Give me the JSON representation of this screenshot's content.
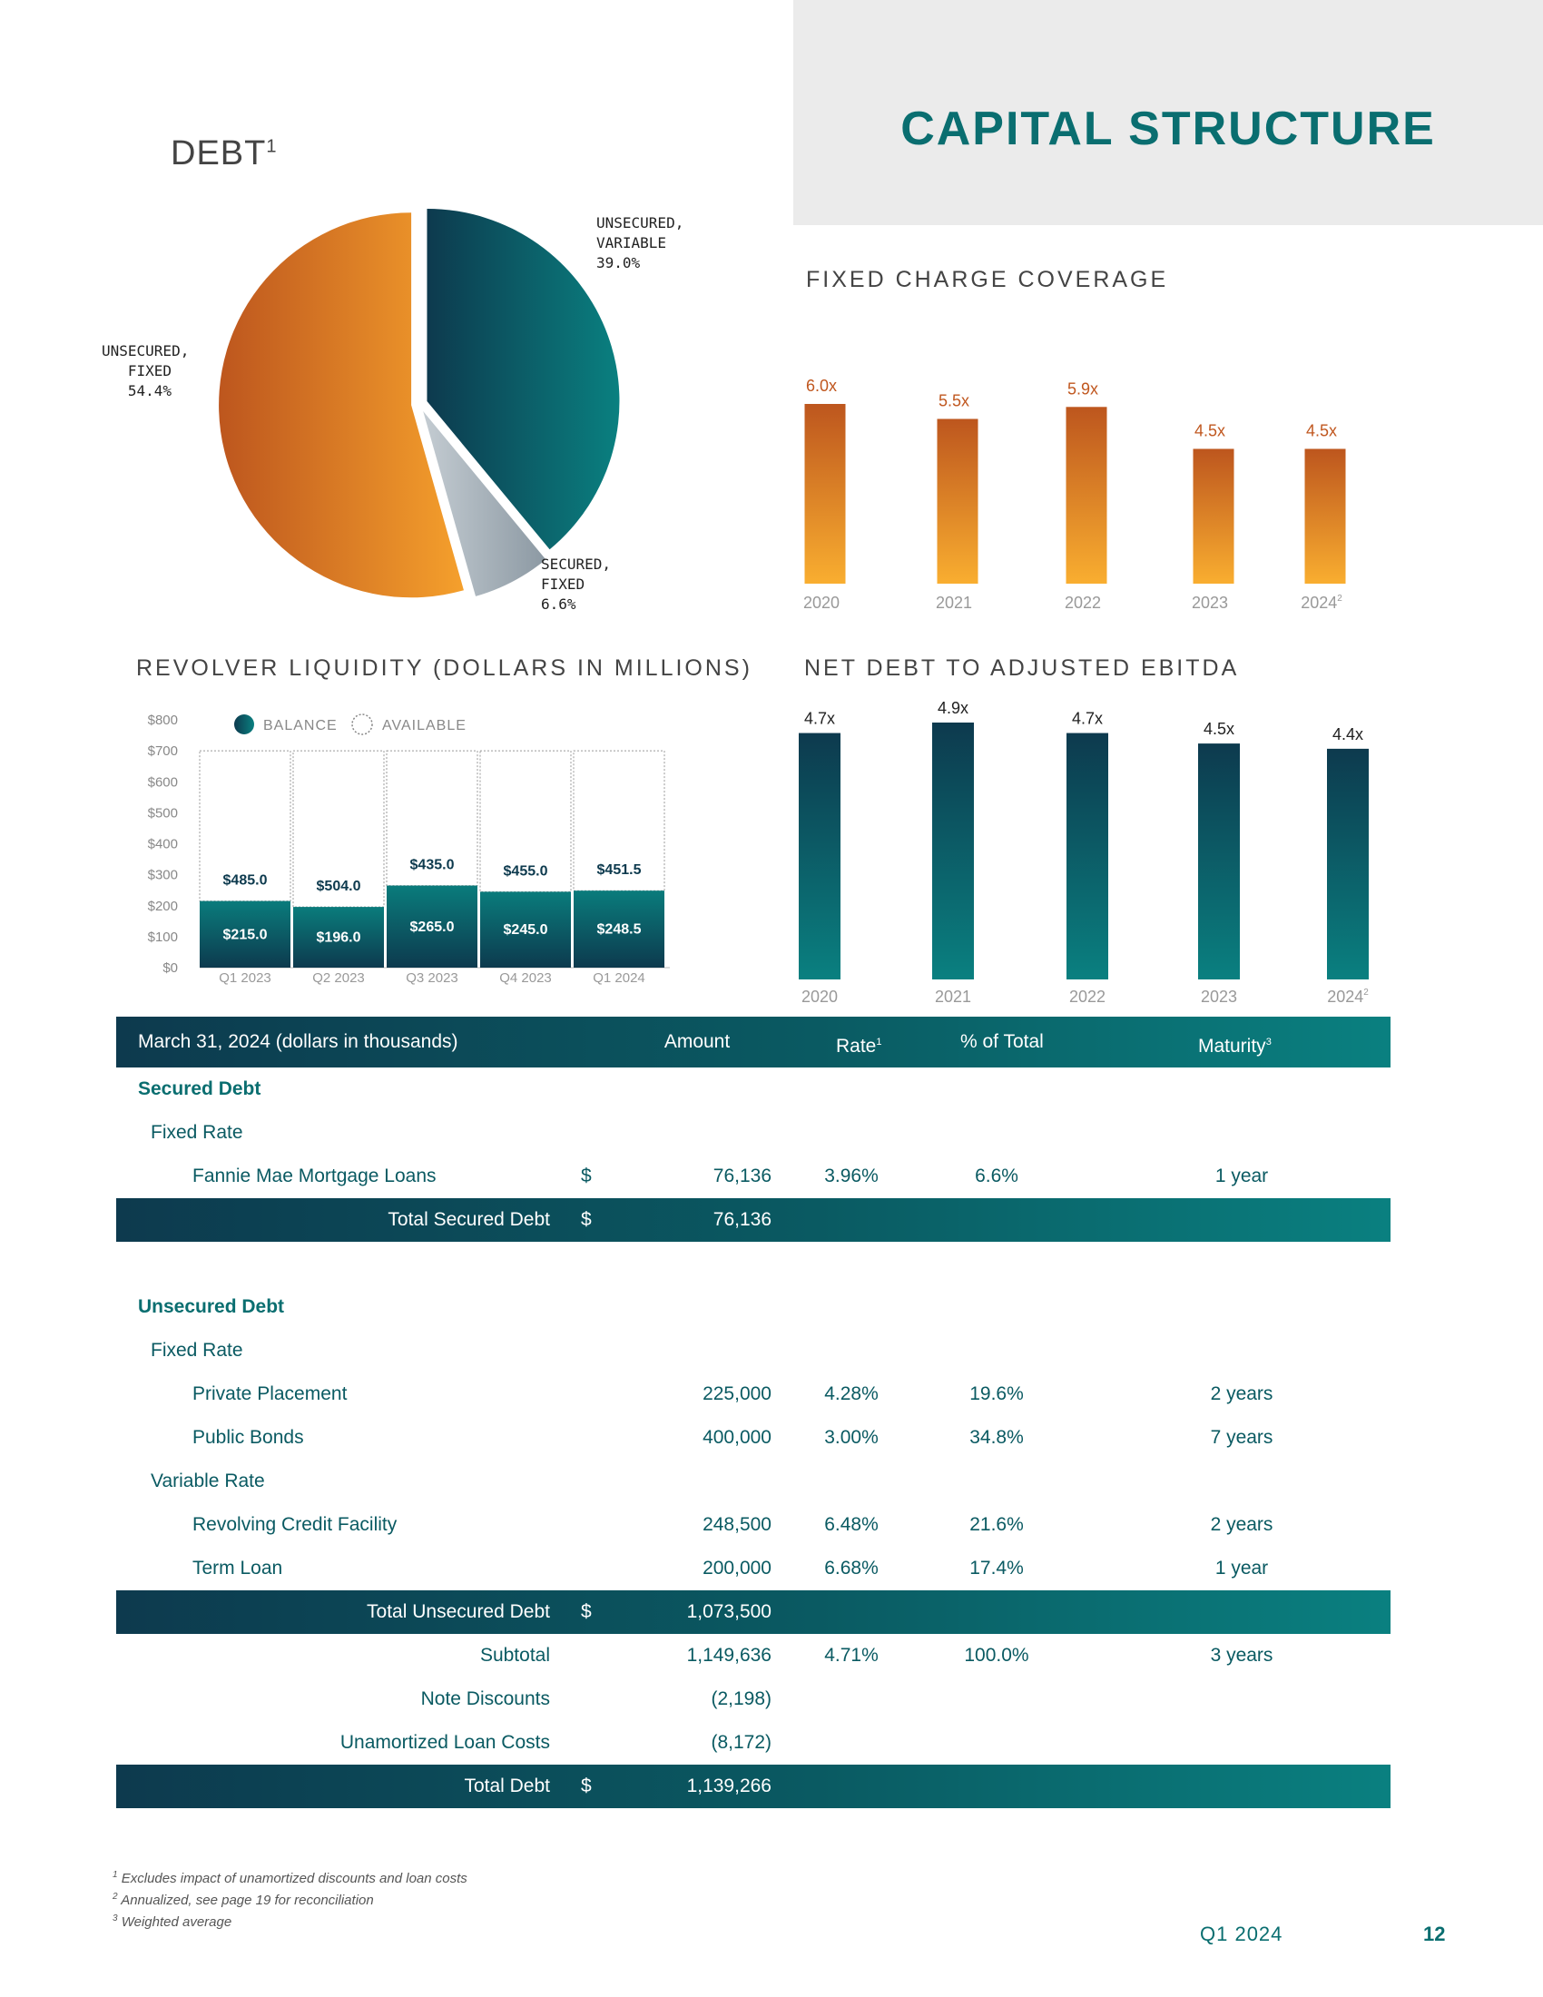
{
  "header": {
    "title": "CAPITAL STRUCTURE"
  },
  "debt_pie": {
    "title": "DEBT",
    "title_sup": "1",
    "labels": {
      "unsecured_variable": "UNSECURED,\nVARIABLE\n39.0%",
      "unsecured_fixed": "UNSECURED,\n   FIXED\n   54.4%",
      "secured_fixed": "SECURED,\nFIXED\n6.6%"
    }
  },
  "fixed_charge": {
    "title": "FIXED CHARGE COVERAGE"
  },
  "revolver": {
    "title": "REVOLVER LIQUIDITY (DOLLARS IN MILLIONS)",
    "legend_balance": "BALANCE",
    "legend_available": "AVAILABLE"
  },
  "net_debt": {
    "title": "NET DEBT TO ADJUSTED EBITDA"
  },
  "chart_data": [
    {
      "type": "pie",
      "title": "DEBT1",
      "categories": [
        "Unsecured, Variable",
        "Secured, Fixed",
        "Unsecured, Fixed"
      ],
      "values": [
        39.0,
        6.6,
        54.4
      ],
      "colors": [
        "#0a6e70",
        "#9aa7b0",
        "#e08a2a"
      ]
    },
    {
      "type": "bar",
      "title": "FIXED CHARGE COVERAGE",
      "categories": [
        "2020",
        "2021",
        "2022",
        "2023",
        "2024"
      ],
      "category_sup": [
        "",
        "",
        "",
        "",
        "2"
      ],
      "values": [
        6.0,
        5.5,
        5.9,
        4.5,
        4.5
      ],
      "value_labels": [
        "6.0x",
        "5.5x",
        "5.9x",
        "4.5x",
        "4.5x"
      ],
      "ylim": [
        0,
        6.0
      ]
    },
    {
      "type": "bar",
      "title": "REVOLVER LIQUIDITY (DOLLARS IN MILLIONS)",
      "stacked": true,
      "categories": [
        "Q1 2023",
        "Q2 2023",
        "Q3 2023",
        "Q4 2023",
        "Q1 2024"
      ],
      "yticks": [
        "$800",
        "$700",
        "$600",
        "$500",
        "$400",
        "$300",
        "$200",
        "$100",
        "$0"
      ],
      "ylim": [
        0,
        800
      ],
      "series": [
        {
          "name": "BALANCE",
          "values": [
            215.0,
            196.0,
            265.0,
            245.0,
            248.5
          ],
          "labels": [
            "$215.0",
            "$196.0",
            "$265.0",
            "$245.0",
            "$248.5"
          ]
        },
        {
          "name": "AVAILABLE",
          "values": [
            485.0,
            504.0,
            435.0,
            455.0,
            451.5
          ],
          "labels": [
            "$485.0",
            "$504.0",
            "$435.0",
            "$455.0",
            "$451.5"
          ]
        }
      ]
    },
    {
      "type": "bar",
      "title": "NET DEBT TO ADJUSTED EBITDA",
      "categories": [
        "2020",
        "2021",
        "2022",
        "2023",
        "2024"
      ],
      "category_sup": [
        "",
        "",
        "",
        "",
        "2"
      ],
      "values": [
        4.7,
        4.9,
        4.7,
        4.5,
        4.4
      ],
      "value_labels": [
        "4.7x",
        "4.9x",
        "4.7x",
        "4.5x",
        "4.4x"
      ],
      "ylim": [
        0,
        4.9
      ]
    }
  ],
  "table": {
    "headers": {
      "label": "March 31, 2024 (dollars in thousands)",
      "amount": "Amount",
      "rate": "Rate",
      "rate_sup": "1",
      "pct": "% of Total",
      "maturity": "Maturity",
      "maturity_sup": "3"
    },
    "rows": [
      {
        "kind": "section",
        "label": "Secured Debt"
      },
      {
        "kind": "group",
        "label": "Fixed Rate"
      },
      {
        "kind": "item",
        "label": "Fannie Mae Mortgage Loans",
        "dollar": "$",
        "amount": "76,136",
        "rate": "3.96%",
        "pct": "6.6%",
        "maturity": "1 year"
      },
      {
        "kind": "total",
        "label": "Total Secured Debt",
        "dollar": "$",
        "amount": "76,136"
      },
      {
        "kind": "spacer"
      },
      {
        "kind": "section",
        "label": "Unsecured Debt"
      },
      {
        "kind": "group",
        "label": "Fixed Rate"
      },
      {
        "kind": "item",
        "label": "Private Placement",
        "amount": "225,000",
        "rate": "4.28%",
        "pct": "19.6%",
        "maturity": "2 years"
      },
      {
        "kind": "item",
        "label": "Public Bonds",
        "amount": "400,000",
        "rate": "3.00%",
        "pct": "34.8%",
        "maturity": "7 years"
      },
      {
        "kind": "group",
        "label": "Variable Rate"
      },
      {
        "kind": "item",
        "label": "Revolving Credit Facility",
        "amount": "248,500",
        "rate": "6.48%",
        "pct": "21.6%",
        "maturity": "2 years"
      },
      {
        "kind": "item",
        "label": "Term Loan",
        "amount": "200,000",
        "rate": "6.68%",
        "pct": "17.4%",
        "maturity": "1 year"
      },
      {
        "kind": "total",
        "label": "Total Unsecured Debt",
        "dollar": "$",
        "amount": "1,073,500"
      },
      {
        "kind": "sub",
        "label": "Subtotal",
        "amount": "1,149,636",
        "rate": "4.71%",
        "pct": "100.0%",
        "maturity": "3 years"
      },
      {
        "kind": "sub",
        "label": "Note Discounts",
        "amount": "(2,198)"
      },
      {
        "kind": "sub",
        "label": "Unamortized Loan Costs",
        "amount": "(8,172)"
      },
      {
        "kind": "total",
        "label": "Total Debt",
        "dollar": "$",
        "amount": "1,139,266"
      }
    ]
  },
  "footnotes": [
    {
      "num": "1",
      "text": "Excludes impact of unamortized discounts and loan costs"
    },
    {
      "num": "2",
      "text": "Annualized, see page 19 for reconciliation"
    },
    {
      "num": "3",
      "text": "Weighted average"
    }
  ],
  "footer": {
    "quarter": "Q1 2024",
    "page": "12"
  }
}
